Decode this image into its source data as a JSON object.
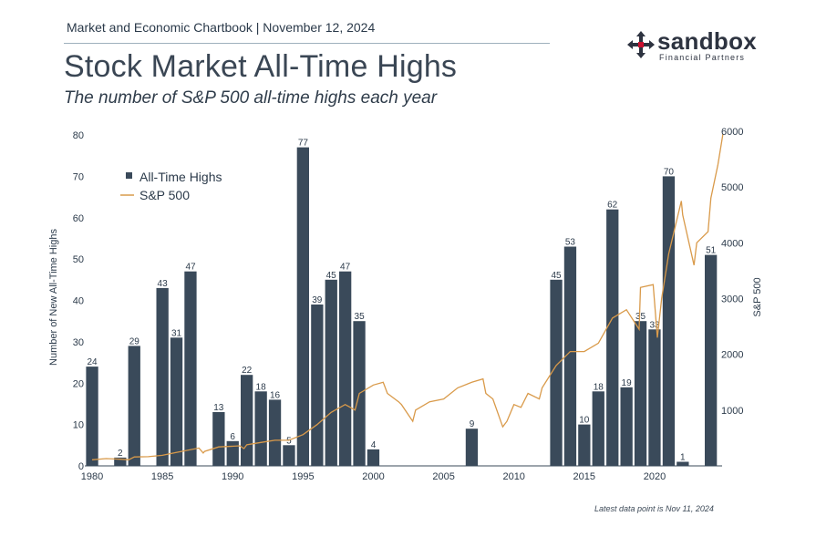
{
  "header": {
    "source_line": "Market and Economic Chartbook | November 12, 2024",
    "title": "Stock Market All-Time Highs",
    "subtitle": "The number of S&P 500 all-time highs each year",
    "footnote": "Latest data point is Nov 11, 2024"
  },
  "logo": {
    "name": "sandbox",
    "tagline": "Financial Partners",
    "icon": "four-arrows-cross-icon",
    "accent_color": "#c8102e"
  },
  "colors": {
    "bars": "#3a4a5a",
    "line": "#d99a4a",
    "axis_text": "#2b3a4a"
  },
  "chart_data": {
    "type": "bar",
    "ylabel": "Number of New All-Time Highs",
    "y2label": "S&P 500",
    "ylim": [
      0,
      80
    ],
    "y2lim": [
      0,
      6000
    ],
    "xlim": [
      1980,
      2024.8
    ],
    "yticks": [
      0,
      10,
      20,
      30,
      40,
      50,
      60,
      70,
      80
    ],
    "y2ticks": [
      1000,
      2000,
      3000,
      4000,
      5000,
      6000
    ],
    "xticks": [
      1980,
      1985,
      1990,
      1995,
      2000,
      2005,
      2010,
      2015,
      2020
    ],
    "legend": {
      "position": "top-left",
      "entries": [
        "All-Time Highs",
        "S&P 500"
      ]
    },
    "grid": false,
    "series": [
      {
        "name": "All-Time Highs",
        "type": "bar",
        "points": [
          {
            "year": 1980,
            "value": 24
          },
          {
            "year": 1982,
            "value": 2
          },
          {
            "year": 1983,
            "value": 29
          },
          {
            "year": 1985,
            "value": 43
          },
          {
            "year": 1986,
            "value": 31
          },
          {
            "year": 1987,
            "value": 47
          },
          {
            "year": 1989,
            "value": 13
          },
          {
            "year": 1990,
            "value": 6
          },
          {
            "year": 1991,
            "value": 22
          },
          {
            "year": 1992,
            "value": 18
          },
          {
            "year": 1993,
            "value": 16
          },
          {
            "year": 1994,
            "value": 5
          },
          {
            "year": 1995,
            "value": 77
          },
          {
            "year": 1996,
            "value": 39
          },
          {
            "year": 1997,
            "value": 45
          },
          {
            "year": 1998,
            "value": 47
          },
          {
            "year": 1999,
            "value": 35
          },
          {
            "year": 2000,
            "value": 4
          },
          {
            "year": 2007,
            "value": 9
          },
          {
            "year": 2013,
            "value": 45
          },
          {
            "year": 2014,
            "value": 53
          },
          {
            "year": 2015,
            "value": 10
          },
          {
            "year": 2016,
            "value": 18
          },
          {
            "year": 2017,
            "value": 62
          },
          {
            "year": 2018,
            "value": 19
          },
          {
            "year": 2019,
            "value": 35
          },
          {
            "year": 2020,
            "value": 33
          },
          {
            "year": 2021,
            "value": 70
          },
          {
            "year": 2022,
            "value": 1
          },
          {
            "year": 2024,
            "value": 51
          }
        ]
      },
      {
        "name": "S&P 500",
        "type": "line",
        "x": [
          1980,
          1981,
          1982,
          1982.6,
          1983,
          1984,
          1985,
          1986,
          1987.6,
          1987.9,
          1988,
          1989,
          1990.5,
          1990.8,
          1991,
          1992,
          1993,
          1994,
          1995,
          1996,
          1997,
          1998,
          1998.7,
          1999,
          2000,
          2000.7,
          2001,
          2001.8,
          2002,
          2002.8,
          2003,
          2004,
          2005,
          2006,
          2007,
          2007.8,
          2008,
          2008.5,
          2009.2,
          2009.5,
          2010,
          2010.5,
          2011,
          2011.8,
          2012,
          2013,
          2014,
          2015,
          2016,
          2017,
          2018,
          2018.9,
          2019,
          2019.9,
          2020.2,
          2020.5,
          2021,
          2021.9,
          2022,
          2022.8,
          2023,
          2023.8,
          2024,
          2024.5,
          2024.86
        ],
        "values": [
          110,
          130,
          120,
          110,
          160,
          165,
          190,
          240,
          320,
          230,
          260,
          340,
          360,
          310,
          380,
          420,
          460,
          460,
          560,
          740,
          960,
          1100,
          1000,
          1300,
          1450,
          1500,
          1300,
          1150,
          1100,
          800,
          1000,
          1150,
          1200,
          1400,
          1500,
          1560,
          1300,
          1200,
          700,
          800,
          1100,
          1050,
          1300,
          1200,
          1400,
          1800,
          2050,
          2050,
          2200,
          2650,
          2800,
          2450,
          3200,
          3250,
          2300,
          3000,
          3800,
          4750,
          4500,
          3600,
          4000,
          4200,
          4800,
          5400,
          5950
        ]
      }
    ]
  }
}
